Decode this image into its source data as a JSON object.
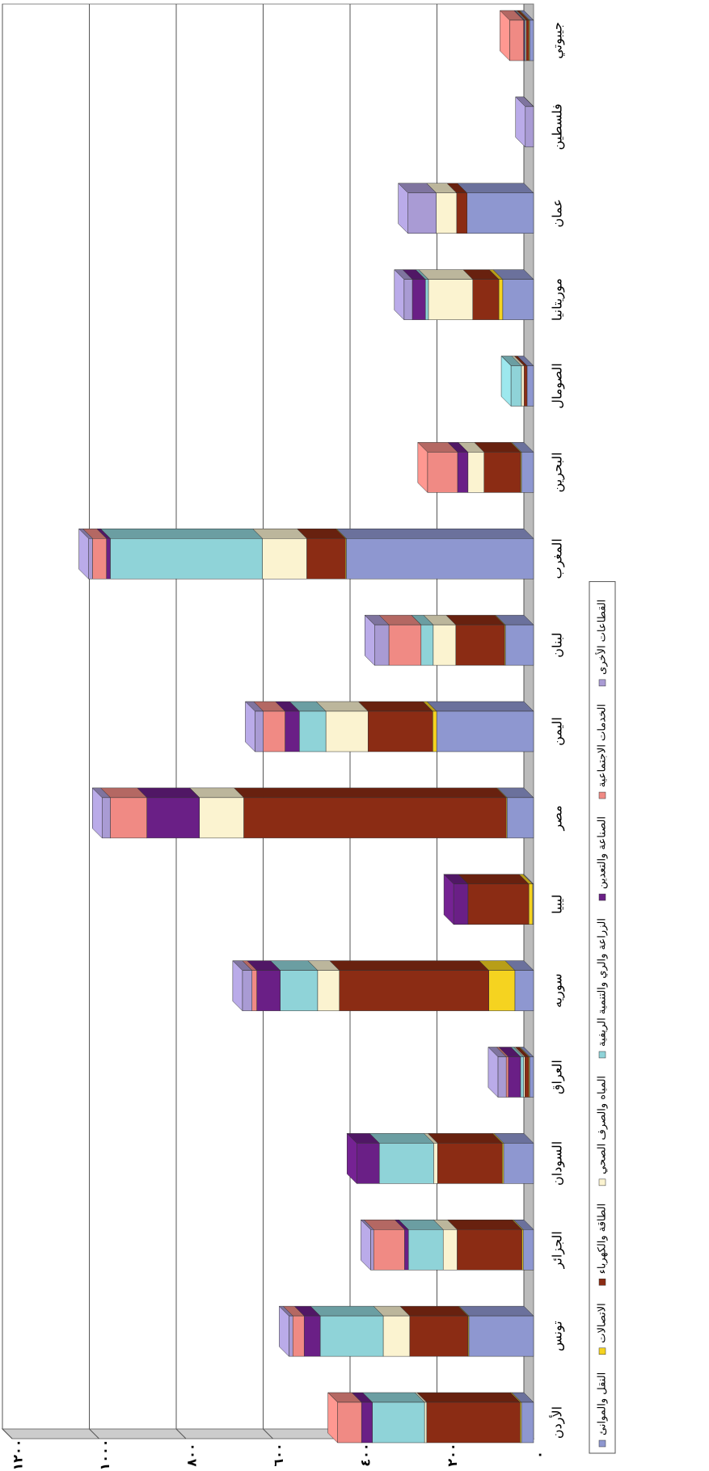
{
  "chart_data": {
    "type": "bar",
    "stacked": true,
    "categories": [
      "الأردن",
      "تونس",
      "الجزائر",
      "السودان",
      "العراق",
      "سوريه",
      "ليبيا",
      "مصر",
      "اليمن",
      "لبنان",
      "المغرب",
      "البحرين",
      "الصومال",
      "موريتانيا",
      "عمان",
      "فلسطين",
      "جيبوتي"
    ],
    "series": [
      {
        "name": "النقل والموانئ",
        "color": "#8e97d0",
        "values": [
          28,
          149,
          24,
          69,
          9,
          43,
          2,
          61,
          223,
          65,
          431,
          28,
          15,
          71,
          153,
          0,
          9
        ]
      },
      {
        "name": "الاتصالات",
        "color": "#f5d320",
        "values": [
          3,
          2,
          3,
          3,
          2,
          60,
          9,
          2,
          9,
          2,
          2,
          2,
          0,
          9,
          0,
          0,
          2
        ]
      },
      {
        "name": "الطاقة والكهرباء",
        "color": "#8b2c14",
        "values": [
          215,
          134,
          149,
          149,
          9,
          344,
          140,
          604,
          149,
          112,
          89,
          84,
          7,
          60,
          24,
          0,
          6
        ]
      },
      {
        "name": "المياه والصرف الصحي",
        "color": "#fbf3d0",
        "values": [
          5,
          61,
          32,
          9,
          3,
          50,
          0,
          102,
          97,
          52,
          102,
          37,
          6,
          102,
          47,
          0,
          2
        ]
      },
      {
        "name": "الزراعة والري والتنمية الريفية",
        "color": "#8fd3d8",
        "values": [
          120,
          145,
          80,
          125,
          7,
          86,
          0,
          0,
          61,
          28,
          350,
          0,
          24,
          7,
          0,
          0,
          2
        ]
      },
      {
        "name": "الصناعة والتعدين",
        "color": "#6a1f86",
        "values": [
          25,
          37,
          9,
          52,
          28,
          54,
          33,
          121,
          33,
          0,
          9,
          24,
          0,
          30,
          0,
          0,
          2
        ]
      },
      {
        "name": "الخدمات الاجتماعية",
        "color": "#f08a84",
        "values": [
          55,
          26,
          71,
          0,
          5,
          11,
          0,
          84,
          50,
          74,
          32,
          69,
          0,
          0,
          0,
          0,
          32
        ]
      },
      {
        "name": "القطاعات الأخرى",
        "color": "#a99bd4",
        "values": [
          0,
          9,
          7,
          0,
          19,
          22,
          0,
          19,
          19,
          33,
          9,
          0,
          0,
          19,
          65,
          19,
          0
        ]
      }
    ],
    "ylim": [
      0,
      1200
    ],
    "yticks": [
      {
        "value": 0,
        "label": "٠"
      },
      {
        "value": 200,
        "label": "٢٠٠"
      },
      {
        "value": 400,
        "label": "٤٠٠"
      },
      {
        "value": 600,
        "label": "٦٠٠"
      },
      {
        "value": 800,
        "label": "٨٠٠"
      },
      {
        "value": 1000,
        "label": "١٠٠٠"
      },
      {
        "value": 1200,
        "label": "١٢٠٠"
      }
    ],
    "grid": true
  }
}
